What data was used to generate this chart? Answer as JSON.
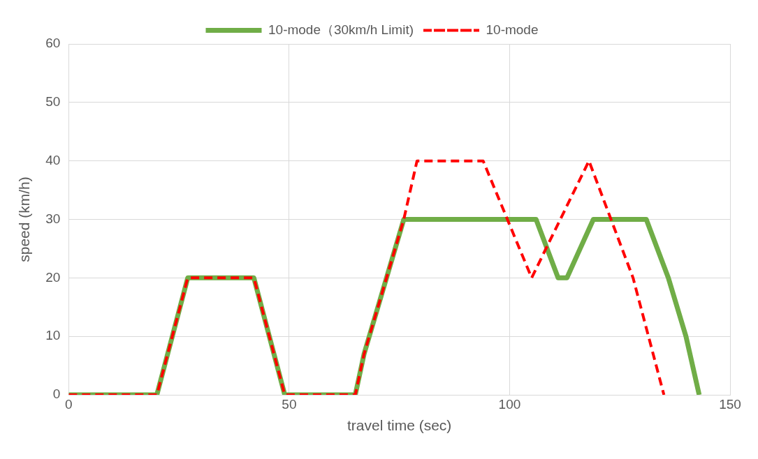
{
  "chart_data": {
    "type": "line",
    "xlabel": "travel time (sec)",
    "ylabel": "speed (km/h)",
    "xlim": [
      0,
      150
    ],
    "xticks": [
      0,
      50,
      100,
      150
    ],
    "ylim": [
      0,
      60
    ],
    "yticks": [
      0,
      10,
      20,
      30,
      40,
      50,
      60
    ],
    "grid": true,
    "legend": "top",
    "marker": "none",
    "series": [
      {
        "name": "10-mode（30km/h Limit)",
        "color": "#70ad47",
        "line_style": "solid",
        "x": [
          0,
          20,
          27,
          42,
          49,
          65,
          67,
          76,
          106,
          111,
          113,
          116,
          119,
          131,
          132,
          136,
          140,
          143
        ],
        "values": [
          0,
          0,
          20,
          20,
          0,
          0,
          7,
          30,
          30,
          20,
          20,
          25,
          30,
          30,
          28,
          20,
          10,
          0
        ]
      },
      {
        "name": "10-mode",
        "color": "#ff0000",
        "line_style": "dashed",
        "x": [
          0,
          20,
          27,
          42,
          49,
          65,
          67,
          76,
          79,
          94,
          105,
          118,
          128,
          135
        ],
        "values": [
          0,
          0,
          20,
          20,
          0,
          0,
          7,
          30,
          40,
          40,
          20,
          40,
          20,
          0
        ]
      }
    ]
  }
}
